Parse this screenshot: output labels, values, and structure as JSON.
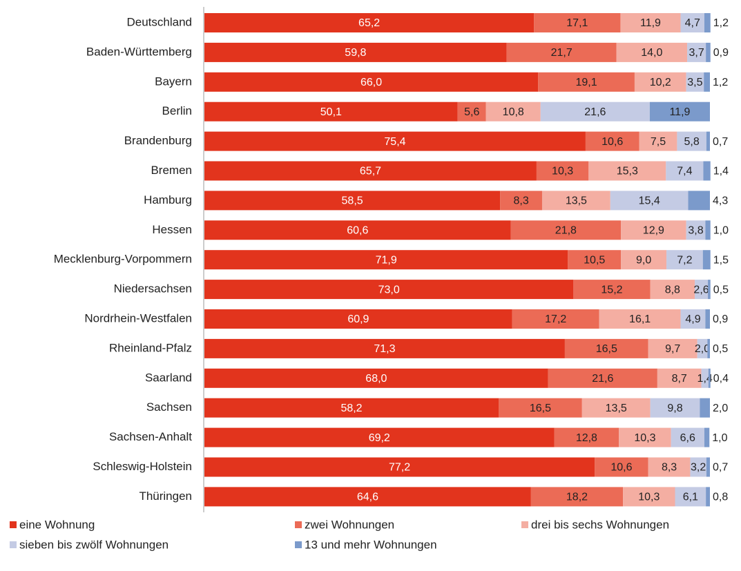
{
  "chart_data": {
    "type": "stacked-barh",
    "categories": [
      "Deutschland",
      "Baden-Württemberg",
      "Bayern",
      "Berlin",
      "Brandenburg",
      "Bremen",
      "Hamburg",
      "Hessen",
      "Mecklenburg-Vorpommern",
      "Niedersachsen",
      "Nordrhein-Westfalen",
      "Rheinland-Pfalz",
      "Saarland",
      "Sachsen",
      "Sachsen-Anhalt",
      "Schleswig-Holstein",
      "Thüringen"
    ],
    "xlim": [
      0,
      100
    ],
    "series": [
      {
        "name": "eine Wohnung",
        "color": "#e2341d",
        "values": [
          65.2,
          59.8,
          66.0,
          50.1,
          75.4,
          65.7,
          58.5,
          60.6,
          71.9,
          73.0,
          60.9,
          71.3,
          68.0,
          58.2,
          69.2,
          77.2,
          64.6
        ],
        "value_labels": [
          "65,2",
          "59,8",
          "66,0",
          "50,1",
          "75,4",
          "65,7",
          "58,5",
          "60,6",
          "71,9",
          "73,0",
          "60,9",
          "71,3",
          "68,0",
          "58,2",
          "69,2",
          "77,2",
          "64,6"
        ]
      },
      {
        "name": "zwei Wohnungen",
        "color": "#eb6b56",
        "values": [
          17.1,
          21.7,
          19.1,
          5.6,
          10.6,
          10.3,
          8.3,
          21.8,
          10.5,
          15.2,
          17.2,
          16.5,
          21.6,
          16.5,
          12.8,
          10.6,
          18.2
        ],
        "value_labels": [
          "17,1",
          "21,7",
          "19,1",
          "5,6",
          "10,6",
          "10,3",
          "8,3",
          "21,8",
          "10,5",
          "15,2",
          "17,2",
          "16,5",
          "21,6",
          "16,5",
          "12,8",
          "10,6",
          "18,2"
        ]
      },
      {
        "name": "drei bis sechs Wohnungen",
        "color": "#f4aea2",
        "values": [
          11.9,
          14.0,
          10.2,
          10.8,
          7.5,
          15.3,
          13.5,
          12.9,
          9.0,
          8.8,
          16.1,
          9.7,
          8.7,
          13.5,
          10.3,
          8.3,
          10.3
        ],
        "value_labels": [
          "11,9",
          "14,0",
          "10,2",
          "10,8",
          "7,5",
          "15,3",
          "13,5",
          "12,9",
          "9,0",
          "8,8",
          "16,1",
          "9,7",
          "8,7",
          "13,5",
          "10,3",
          "8,3",
          "10,3"
        ]
      },
      {
        "name": "sieben bis zwölf Wohnungen",
        "color": "#c4cbe4",
        "values": [
          4.7,
          3.7,
          3.5,
          21.6,
          5.8,
          7.4,
          15.4,
          3.8,
          7.2,
          2.6,
          4.9,
          2.0,
          1.4,
          9.8,
          6.6,
          3.2,
          6.1
        ],
        "value_labels": [
          "4,7",
          "3,7",
          "3,5",
          "21,6",
          "5,8",
          "7,4",
          "15,4",
          "3,8",
          "7,2",
          "2,6",
          "4,9",
          "2,0",
          "1,4",
          "9,8",
          "6,6",
          "3,2",
          "6,1"
        ]
      },
      {
        "name": "13 und mehr Wohnungen",
        "color": "#7b9acb",
        "values": [
          1.2,
          0.9,
          1.2,
          11.9,
          0.7,
          1.4,
          4.3,
          1.0,
          1.5,
          0.5,
          0.9,
          0.5,
          0.4,
          2.0,
          1.0,
          0.7,
          0.8
        ],
        "value_labels": [
          "1,2",
          "0,9",
          "1,2",
          "11,9",
          "0,7",
          "1,4",
          "4,3",
          "1,0",
          "1,5",
          "0,5",
          "0,9",
          "0,5",
          "0,4",
          "2,0",
          "1,0",
          "0,7",
          "0,8"
        ]
      }
    ]
  }
}
